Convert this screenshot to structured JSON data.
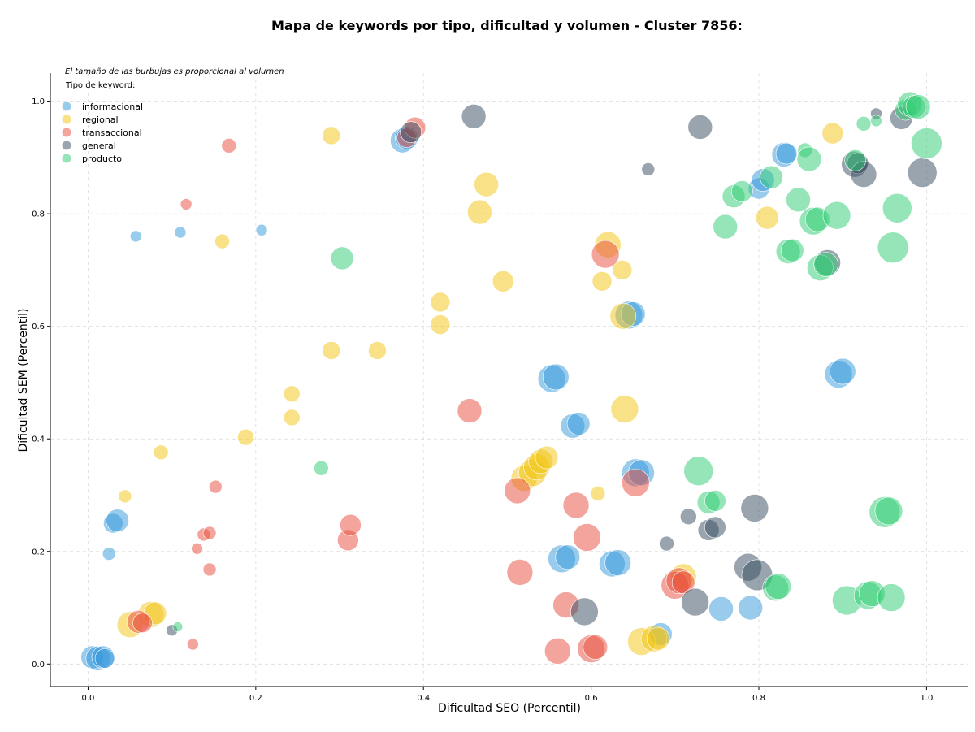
{
  "chart_data": {
    "type": "scatter",
    "title": "Mapa de keywords por tipo, dificultad y volumen - Cluster 7856:",
    "xlabel": "Dificultad SEO (Percentil)",
    "ylabel": "Dificultad SEM (Percentil)",
    "xlim": [
      -0.045,
      1.05
    ],
    "ylim": [
      -0.04,
      1.05
    ],
    "xticks": [
      "0.0",
      "0.2",
      "0.4",
      "0.6",
      "0.8",
      "1.0"
    ],
    "yticks": [
      "0.0",
      "0.2",
      "0.4",
      "0.6",
      "0.8",
      "1.0"
    ],
    "grid": true,
    "size_note": "El tamaño de las burbujas es proporcional al volumen",
    "legend_title": "Tipo de keyword:",
    "legend_position": "top-left",
    "series": [
      {
        "name": "informacional",
        "color": "#3498db",
        "points": [
          [
            0.057,
            0.76,
            7
          ],
          [
            0.11,
            0.767,
            7
          ],
          [
            0.207,
            0.771,
            7
          ],
          [
            0.025,
            0.196,
            8
          ],
          [
            0.03,
            0.25,
            12
          ],
          [
            0.035,
            0.255,
            14
          ],
          [
            0.005,
            0.012,
            14
          ],
          [
            0.012,
            0.01,
            15
          ],
          [
            0.018,
            0.012,
            14
          ],
          [
            0.02,
            0.01,
            12
          ],
          [
            0.375,
            0.93,
            15
          ],
          [
            0.38,
            0.935,
            14
          ],
          [
            0.553,
            0.507,
            17
          ],
          [
            0.558,
            0.51,
            16
          ],
          [
            0.578,
            0.423,
            15
          ],
          [
            0.585,
            0.427,
            14
          ],
          [
            0.645,
            0.62,
            17
          ],
          [
            0.65,
            0.622,
            15
          ],
          [
            0.653,
            0.34,
            17
          ],
          [
            0.66,
            0.34,
            16
          ],
          [
            0.565,
            0.187,
            17
          ],
          [
            0.572,
            0.19,
            15
          ],
          [
            0.625,
            0.178,
            16
          ],
          [
            0.632,
            0.18,
            16
          ],
          [
            0.683,
            0.053,
            14
          ],
          [
            0.755,
            0.098,
            15
          ],
          [
            0.79,
            0.1,
            15
          ],
          [
            0.8,
            0.845,
            13
          ],
          [
            0.805,
            0.86,
            14
          ],
          [
            0.83,
            0.905,
            15
          ],
          [
            0.833,
            0.907,
            13
          ],
          [
            0.895,
            0.515,
            17
          ],
          [
            0.9,
            0.52,
            16
          ]
        ]
      },
      {
        "name": "regional",
        "color": "#f1c40f",
        "points": [
          [
            0.044,
            0.298,
            8
          ],
          [
            0.087,
            0.376,
            9
          ],
          [
            0.16,
            0.751,
            9
          ],
          [
            0.29,
            0.939,
            11
          ],
          [
            0.188,
            0.403,
            10
          ],
          [
            0.243,
            0.48,
            10
          ],
          [
            0.243,
            0.438,
            10
          ],
          [
            0.29,
            0.557,
            11
          ],
          [
            0.345,
            0.557,
            11
          ],
          [
            0.42,
            0.643,
            12
          ],
          [
            0.42,
            0.603,
            12
          ],
          [
            0.467,
            0.803,
            15
          ],
          [
            0.475,
            0.852,
            15
          ],
          [
            0.495,
            0.68,
            13
          ],
          [
            0.05,
            0.07,
            16
          ],
          [
            0.075,
            0.088,
            16
          ],
          [
            0.08,
            0.09,
            14
          ],
          [
            0.52,
            0.33,
            16
          ],
          [
            0.53,
            0.34,
            17
          ],
          [
            0.535,
            0.35,
            16
          ],
          [
            0.54,
            0.36,
            15
          ],
          [
            0.547,
            0.367,
            14
          ],
          [
            0.608,
            0.303,
            9
          ],
          [
            0.613,
            0.68,
            12
          ],
          [
            0.62,
            0.745,
            16
          ],
          [
            0.637,
            0.7,
            12
          ],
          [
            0.638,
            0.618,
            16
          ],
          [
            0.64,
            0.453,
            17
          ],
          [
            0.66,
            0.04,
            17
          ],
          [
            0.675,
            0.045,
            16
          ],
          [
            0.68,
            0.045,
            14
          ],
          [
            0.71,
            0.155,
            16
          ],
          [
            0.81,
            0.793,
            14
          ],
          [
            0.888,
            0.943,
            13
          ]
        ]
      },
      {
        "name": "transaccional",
        "color": "#e74c3c",
        "points": [
          [
            0.117,
            0.817,
            7
          ],
          [
            0.168,
            0.921,
            9
          ],
          [
            0.152,
            0.315,
            8
          ],
          [
            0.13,
            0.205,
            7
          ],
          [
            0.138,
            0.23,
            8
          ],
          [
            0.145,
            0.233,
            8
          ],
          [
            0.145,
            0.168,
            8
          ],
          [
            0.125,
            0.035,
            7
          ],
          [
            0.06,
            0.075,
            14
          ],
          [
            0.065,
            0.073,
            12
          ],
          [
            0.31,
            0.22,
            13
          ],
          [
            0.313,
            0.247,
            13
          ],
          [
            0.38,
            0.935,
            12
          ],
          [
            0.39,
            0.953,
            13
          ],
          [
            0.455,
            0.45,
            15
          ],
          [
            0.512,
            0.308,
            16
          ],
          [
            0.515,
            0.163,
            16
          ],
          [
            0.56,
            0.023,
            16
          ],
          [
            0.57,
            0.105,
            16
          ],
          [
            0.582,
            0.282,
            16
          ],
          [
            0.595,
            0.225,
            17
          ],
          [
            0.6,
            0.027,
            17
          ],
          [
            0.605,
            0.03,
            15
          ],
          [
            0.617,
            0.728,
            17
          ],
          [
            0.653,
            0.322,
            17
          ],
          [
            0.7,
            0.14,
            17
          ],
          [
            0.705,
            0.148,
            16
          ],
          [
            0.71,
            0.145,
            14
          ]
        ]
      },
      {
        "name": "general",
        "color": "#34495e",
        "points": [
          [
            0.1,
            0.06,
            7
          ],
          [
            0.385,
            0.945,
            13
          ],
          [
            0.46,
            0.973,
            15
          ],
          [
            0.592,
            0.093,
            17
          ],
          [
            0.668,
            0.879,
            8
          ],
          [
            0.69,
            0.214,
            9
          ],
          [
            0.716,
            0.262,
            10
          ],
          [
            0.724,
            0.11,
            17
          ],
          [
            0.73,
            0.954,
            15
          ],
          [
            0.74,
            0.238,
            13
          ],
          [
            0.748,
            0.243,
            13
          ],
          [
            0.795,
            0.277,
            17
          ],
          [
            0.787,
            0.172,
            17
          ],
          [
            0.798,
            0.158,
            19
          ],
          [
            0.882,
            0.713,
            16
          ],
          [
            0.914,
            0.888,
            16
          ],
          [
            0.918,
            0.89,
            13
          ],
          [
            0.925,
            0.87,
            16
          ],
          [
            0.94,
            0.978,
            7
          ],
          [
            0.97,
            0.97,
            14
          ],
          [
            0.995,
            0.873,
            18
          ]
        ]
      },
      {
        "name": "producto",
        "color": "#2ecc71",
        "points": [
          [
            0.107,
            0.066,
            6
          ],
          [
            0.278,
            0.348,
            9
          ],
          [
            0.303,
            0.721,
            14
          ],
          [
            0.728,
            0.343,
            18
          ],
          [
            0.74,
            0.287,
            14
          ],
          [
            0.748,
            0.29,
            13
          ],
          [
            0.76,
            0.777,
            15
          ],
          [
            0.77,
            0.831,
            14
          ],
          [
            0.78,
            0.84,
            13
          ],
          [
            0.815,
            0.865,
            14
          ],
          [
            0.82,
            0.135,
            16
          ],
          [
            0.823,
            0.138,
            16
          ],
          [
            0.835,
            0.733,
            15
          ],
          [
            0.84,
            0.735,
            14
          ],
          [
            0.847,
            0.825,
            15
          ],
          [
            0.855,
            0.913,
            9
          ],
          [
            0.86,
            0.897,
            15
          ],
          [
            0.865,
            0.787,
            17
          ],
          [
            0.87,
            0.79,
            15
          ],
          [
            0.873,
            0.704,
            16
          ],
          [
            0.88,
            0.71,
            15
          ],
          [
            0.893,
            0.797,
            17
          ],
          [
            0.905,
            0.113,
            18
          ],
          [
            0.915,
            0.895,
            13
          ],
          [
            0.93,
            0.122,
            17
          ],
          [
            0.935,
            0.125,
            16
          ],
          [
            0.925,
            0.96,
            9
          ],
          [
            0.94,
            0.965,
            7
          ],
          [
            0.95,
            0.27,
            19
          ],
          [
            0.955,
            0.272,
            17
          ],
          [
            0.958,
            0.118,
            17
          ],
          [
            0.96,
            0.74,
            19
          ],
          [
            0.965,
            0.81,
            18
          ],
          [
            0.975,
            0.985,
            13
          ],
          [
            0.98,
            0.995,
            15
          ],
          [
            0.985,
            0.99,
            14
          ],
          [
            0.99,
            0.99,
            15
          ],
          [
            1.0,
            0.925,
            19
          ]
        ]
      }
    ]
  }
}
